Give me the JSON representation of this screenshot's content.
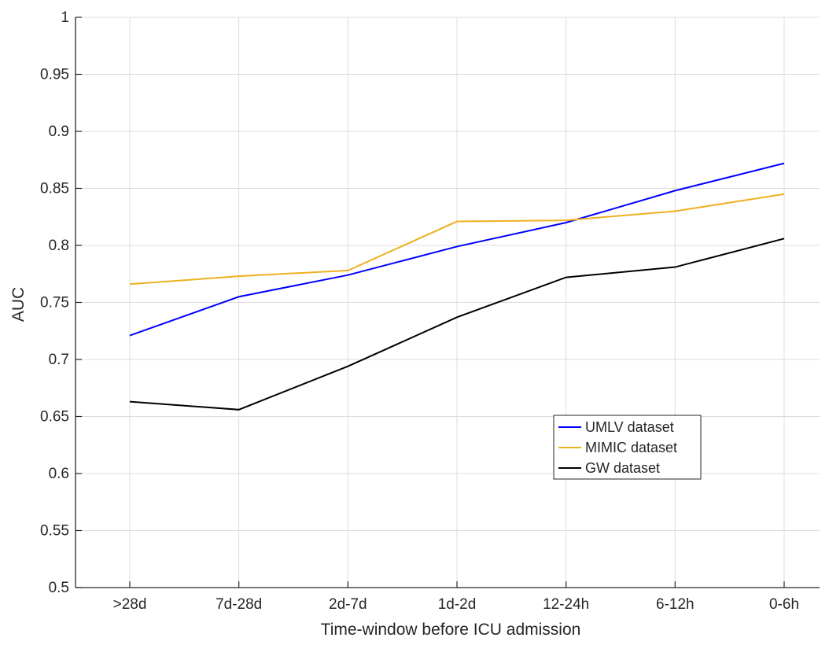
{
  "chart_data": {
    "type": "line",
    "title": "",
    "xlabel": "Time-window before ICU admission",
    "ylabel": "AUC",
    "categories": [
      ">28d",
      "7d-28d",
      "2d-7d",
      "1d-2d",
      "12-24h",
      "6-12h",
      "0-6h"
    ],
    "ylim": [
      0.5,
      1
    ],
    "yticks": [
      "0.5",
      "0.55",
      "0.6",
      "0.65",
      "0.7",
      "0.75",
      "0.8",
      "0.85",
      "0.9",
      "0.95",
      "1"
    ],
    "grid": true,
    "legend_position": "lower-right",
    "series": [
      {
        "name": "UMLV dataset",
        "color": "#0000ff",
        "values": [
          0.721,
          0.755,
          0.774,
          0.799,
          0.82,
          0.848,
          0.872
        ]
      },
      {
        "name": "MIMIC dataset",
        "color": "#edb120",
        "values": [
          0.766,
          0.773,
          0.778,
          0.821,
          0.822,
          0.83,
          0.845
        ]
      },
      {
        "name": "GW dataset",
        "color": "#000000",
        "values": [
          0.663,
          0.656,
          0.694,
          0.737,
          0.772,
          0.781,
          0.806
        ]
      }
    ]
  }
}
